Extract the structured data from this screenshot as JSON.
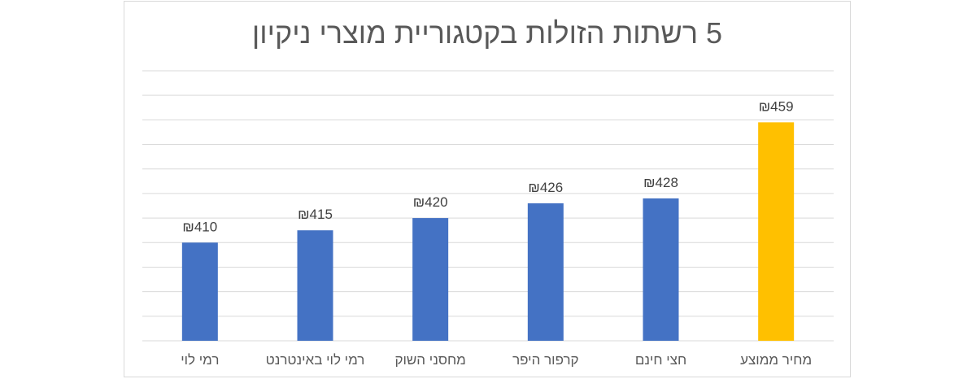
{
  "chart_data": {
    "type": "bar",
    "title": "5 רשתות הזולות בקטגוריית מוצרי ניקיון",
    "categories": [
      "מחיר ממוצע",
      "חצי חינם",
      "קרפור היפר",
      "מחסני השוק",
      "רמי לוי באינטרנט",
      "רמי לוי"
    ],
    "values": [
      459,
      428,
      426,
      420,
      415,
      410
    ],
    "data_labels": [
      "₪459",
      "₪428",
      "₪426",
      "₪420",
      "₪415",
      "₪410"
    ],
    "bar_colors": [
      "#FFC000",
      "#4472C4",
      "#4472C4",
      "#4472C4",
      "#4472C4",
      "#4472C4"
    ],
    "ylim": [
      370,
      480
    ],
    "grid": true,
    "category_order": "right-to-left",
    "xlabel": "",
    "ylabel": "",
    "legend": "none"
  }
}
